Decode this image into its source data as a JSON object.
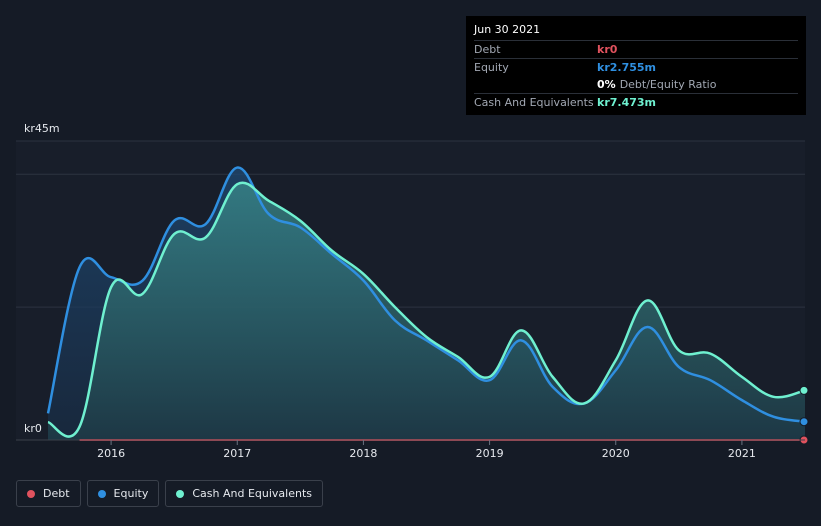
{
  "tooltip": {
    "date": "Jun 30 2021",
    "debt_label": "Debt",
    "debt_value": "kr0",
    "equity_label": "Equity",
    "equity_value": "kr2.755m",
    "ratio_value": "0%",
    "ratio_label": "Debt/Equity Ratio",
    "cash_label": "Cash And Equivalents",
    "cash_value": "kr7.473m"
  },
  "legend": [
    {
      "label": "Debt",
      "color": "#e0525e"
    },
    {
      "label": "Equity",
      "color": "#2f8fe0"
    },
    {
      "label": "Cash And Equivalents",
      "color": "#6ff0d0"
    }
  ],
  "colors": {
    "debt": "#e0525e",
    "equity": "#2f8fe0",
    "cash": "#6ff0d0",
    "background": "#151b26"
  },
  "chart_data": {
    "type": "area",
    "y_top_label": "kr45m",
    "y_bottom_label": "kr0",
    "ylim": [
      0,
      45
    ],
    "xlim": [
      2015.5,
      2021.5
    ],
    "x_ticks": [
      {
        "label": "2016",
        "x": 2016.0
      },
      {
        "label": "2017",
        "x": 2017.0
      },
      {
        "label": "2018",
        "x": 2018.0
      },
      {
        "label": "2019",
        "x": 2019.0
      },
      {
        "label": "2020",
        "x": 2020.0
      },
      {
        "label": "2021",
        "x": 2021.0
      }
    ],
    "series": [
      {
        "name": "Debt",
        "points": [
          [
            2015.75,
            0
          ],
          [
            2021.5,
            0
          ]
        ]
      },
      {
        "name": "Equity",
        "points": [
          [
            2015.5,
            4
          ],
          [
            2015.75,
            26
          ],
          [
            2016.0,
            24.5
          ],
          [
            2016.25,
            24
          ],
          [
            2016.5,
            33
          ],
          [
            2016.75,
            32.5
          ],
          [
            2017.0,
            41
          ],
          [
            2017.25,
            34
          ],
          [
            2017.5,
            32
          ],
          [
            2017.75,
            28
          ],
          [
            2018.0,
            24
          ],
          [
            2018.25,
            18
          ],
          [
            2018.5,
            15
          ],
          [
            2018.75,
            12
          ],
          [
            2019.0,
            9
          ],
          [
            2019.25,
            15
          ],
          [
            2019.5,
            8
          ],
          [
            2019.75,
            5.5
          ],
          [
            2020.0,
            10.5
          ],
          [
            2020.25,
            17
          ],
          [
            2020.5,
            11
          ],
          [
            2020.75,
            9
          ],
          [
            2021.0,
            6
          ],
          [
            2021.25,
            3.5
          ],
          [
            2021.5,
            2.755
          ]
        ]
      },
      {
        "name": "Cash And Equivalents",
        "points": [
          [
            2015.5,
            2.7
          ],
          [
            2015.75,
            2
          ],
          [
            2016.0,
            23
          ],
          [
            2016.25,
            22
          ],
          [
            2016.5,
            31
          ],
          [
            2016.75,
            30.5
          ],
          [
            2017.0,
            38.5
          ],
          [
            2017.25,
            36
          ],
          [
            2017.5,
            33
          ],
          [
            2017.75,
            28.5
          ],
          [
            2018.0,
            25
          ],
          [
            2018.25,
            20
          ],
          [
            2018.5,
            15.5
          ],
          [
            2018.75,
            12.5
          ],
          [
            2019.0,
            9.5
          ],
          [
            2019.25,
            16.5
          ],
          [
            2019.5,
            9.5
          ],
          [
            2019.75,
            5.5
          ],
          [
            2020.0,
            12
          ],
          [
            2020.25,
            21
          ],
          [
            2020.5,
            13.5
          ],
          [
            2020.75,
            13
          ],
          [
            2021.0,
            9.5
          ],
          [
            2021.25,
            6.5
          ],
          [
            2021.5,
            7.473
          ]
        ]
      }
    ]
  }
}
